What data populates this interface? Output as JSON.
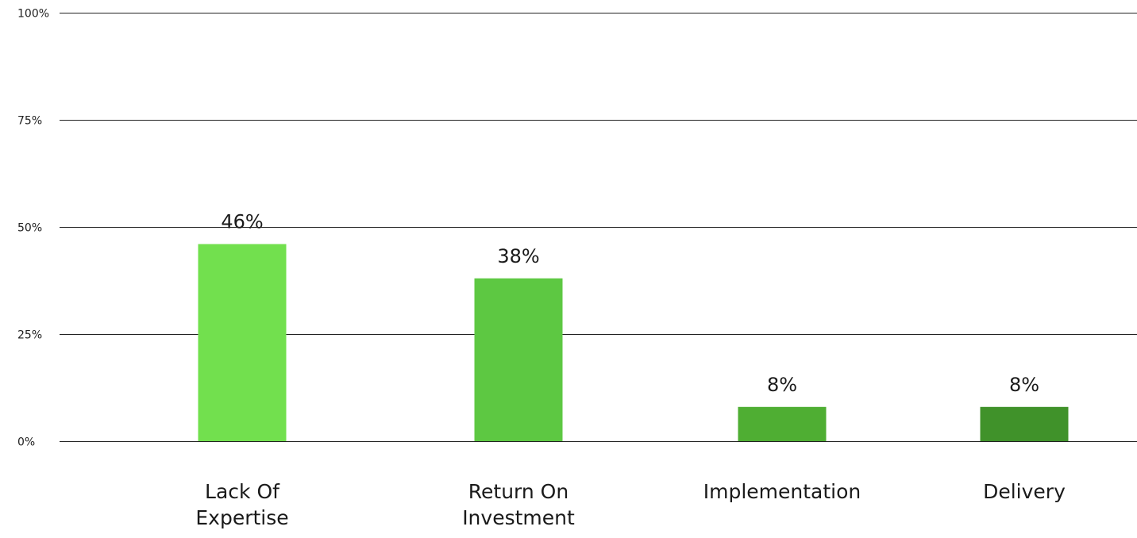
{
  "chart_data": {
    "type": "bar",
    "categories": [
      [
        "Lack Of",
        "Expertise"
      ],
      [
        "Return On",
        "Investment"
      ],
      [
        "Implementation"
      ],
      [
        "Delivery"
      ]
    ],
    "values": [
      46,
      38,
      8,
      8
    ],
    "data_labels": [
      "46%",
      "38%",
      "8%",
      "8%"
    ],
    "bar_colors": [
      "#72e04e",
      "#5dc842",
      "#4fae33",
      "#40922a"
    ],
    "yticks": [
      {
        "value": 0,
        "label": "0%"
      },
      {
        "value": 25,
        "label": "25%"
      },
      {
        "value": 50,
        "label": "50%"
      },
      {
        "value": 75,
        "label": "75%"
      },
      {
        "value": 100,
        "label": "100%"
      }
    ],
    "ylim": [
      0,
      100
    ],
    "grid": true,
    "legend": "none"
  }
}
